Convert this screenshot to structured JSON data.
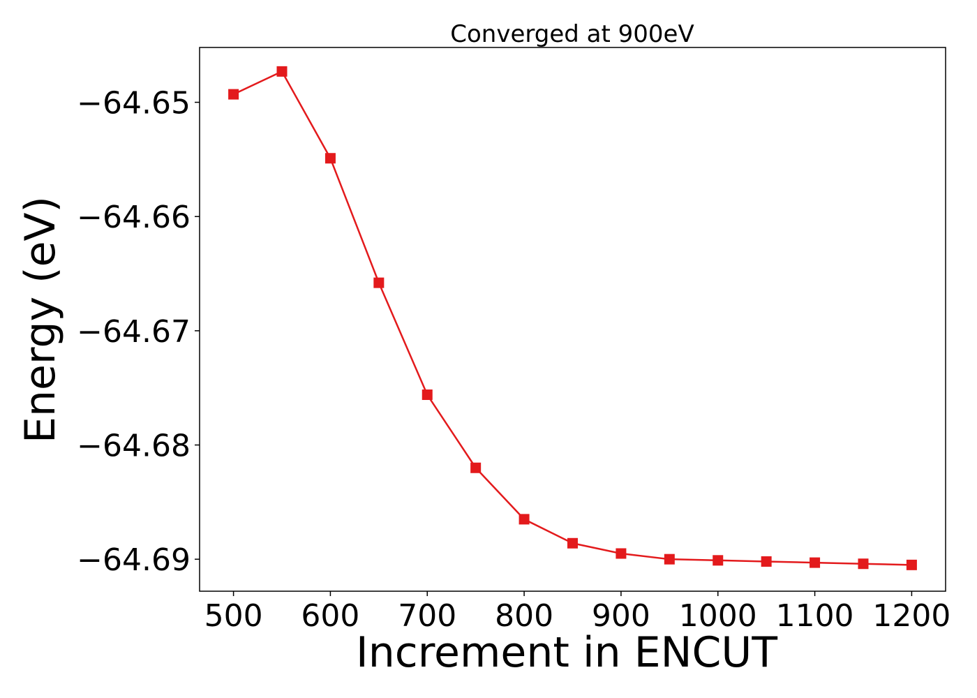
{
  "chart_data": {
    "type": "line",
    "title": "Converged at 900eV",
    "xlabel": "Increment in ENCUT",
    "ylabel": "Energy (eV)",
    "xlim": [
      465,
      1235
    ],
    "ylim": [
      -64.6928,
      -64.6452
    ],
    "x_ticks": [
      500,
      600,
      700,
      800,
      900,
      1000,
      1100,
      1200
    ],
    "y_ticks": [
      -64.65,
      -64.66,
      -64.67,
      -64.68,
      -64.69
    ],
    "x_tick_labels": [
      "500",
      "600",
      "700",
      "800",
      "900",
      "1000",
      "1100",
      "1200"
    ],
    "y_tick_labels": [
      "−64.65",
      "−64.66",
      "−64.67",
      "−64.68",
      "−64.69"
    ],
    "grid": false,
    "series": [
      {
        "color": "#e31a1c",
        "marker": "square",
        "x": [
          500,
          550,
          600,
          650,
          700,
          750,
          800,
          850,
          900,
          950,
          1000,
          1050,
          1100,
          1150,
          1200
        ],
        "y": [
          -64.6493,
          -64.6473,
          -64.6549,
          -64.6658,
          -64.6756,
          -64.682,
          -64.6865,
          -64.6886,
          -64.6895,
          -64.69,
          -64.6901,
          -64.6902,
          -64.6903,
          -64.6904,
          -64.6905
        ]
      }
    ]
  }
}
